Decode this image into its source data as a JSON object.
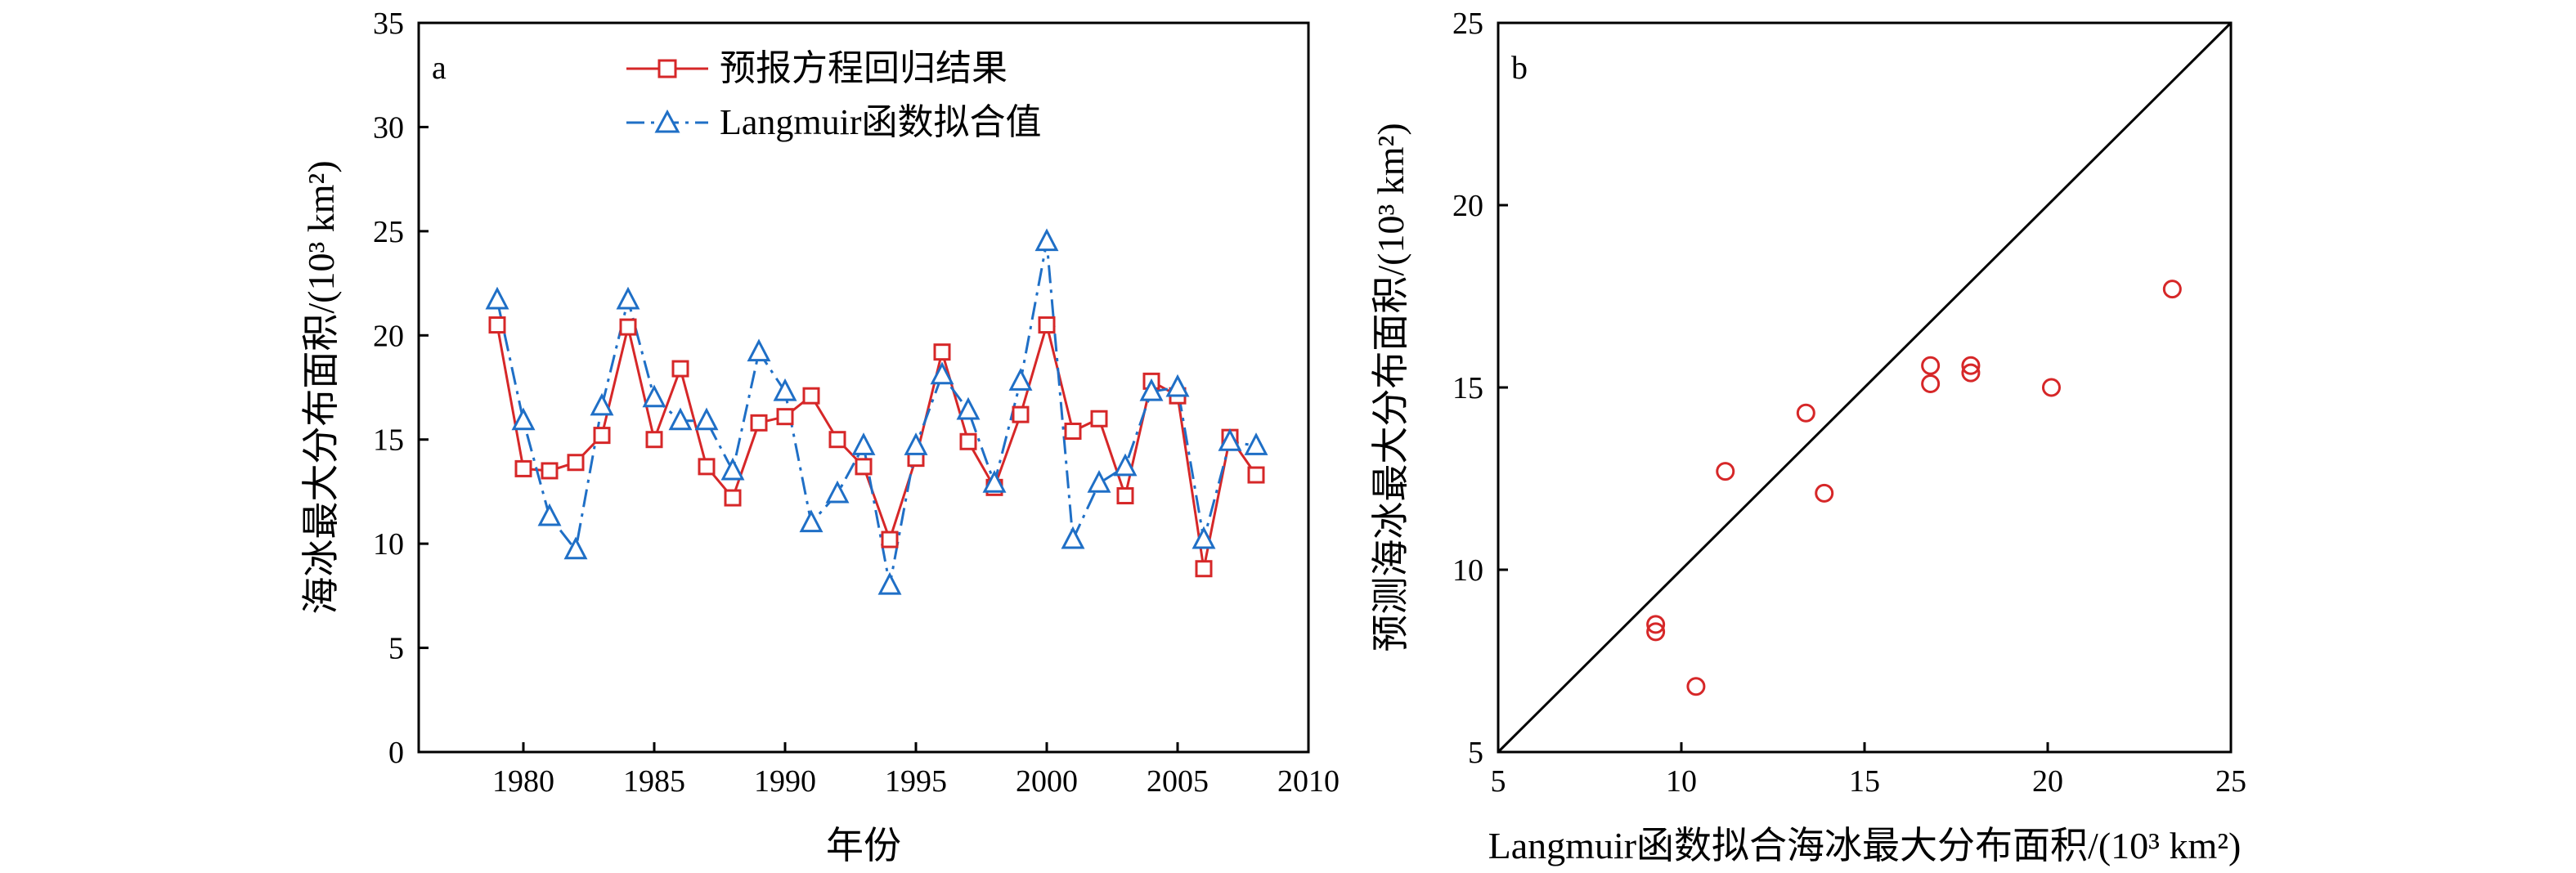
{
  "chart_data": [
    {
      "type": "line",
      "panel_label": "a",
      "xlabel": "年份",
      "ylabel": "海冰最大分布面积/(10³ km²)",
      "xlim": [
        1976,
        2010
      ],
      "ylim": [
        0,
        35
      ],
      "xticks": [
        1980,
        1985,
        1990,
        1995,
        2000,
        2005,
        2010
      ],
      "yticks": [
        0,
        5,
        10,
        15,
        20,
        25,
        30,
        35
      ],
      "legend_position": "top-center",
      "x": [
        1979,
        1980,
        1981,
        1982,
        1983,
        1984,
        1985,
        1986,
        1987,
        1988,
        1989,
        1990,
        1991,
        1992,
        1993,
        1994,
        1995,
        1996,
        1997,
        1998,
        1999,
        2000,
        2001,
        2002,
        2003,
        2004,
        2005,
        2006,
        2007,
        2008
      ],
      "series": [
        {
          "name": "预报方程回归结果",
          "color": "#d62728",
          "marker": "square",
          "line": "solid",
          "values": [
            20.5,
            13.6,
            13.5,
            13.9,
            15.2,
            20.4,
            15.0,
            18.4,
            13.7,
            12.2,
            15.8,
            16.1,
            17.1,
            15.0,
            13.7,
            10.2,
            14.1,
            19.2,
            14.9,
            12.7,
            16.2,
            20.5,
            15.4,
            16.0,
            12.3,
            17.8,
            17.1,
            8.8,
            15.1,
            13.3
          ]
        },
        {
          "name": "Langmuir函数拟合值",
          "color": "#1f6fc6",
          "marker": "triangle",
          "line": "dashdot",
          "values": [
            21.7,
            15.9,
            11.3,
            9.7,
            16.6,
            21.7,
            17.0,
            15.9,
            15.9,
            13.5,
            19.2,
            17.3,
            11.0,
            12.4,
            14.7,
            8.0,
            14.7,
            18.1,
            16.4,
            12.9,
            17.8,
            24.5,
            10.2,
            12.9,
            13.7,
            17.3,
            17.5,
            10.2,
            14.9,
            14.7
          ]
        }
      ]
    },
    {
      "type": "scatter",
      "panel_label": "b",
      "xlabel": "Langmuir函数拟合海冰最大分布面积/(10³ km²)",
      "ylabel": "预测海冰最大分布面积/(10³ km²)",
      "xlim": [
        5,
        25
      ],
      "ylim": [
        5,
        25
      ],
      "xticks": [
        5,
        10,
        15,
        20,
        25
      ],
      "yticks": [
        5,
        10,
        15,
        20,
        25
      ],
      "reference_line": "y = x",
      "marker_color": "#d62728",
      "points": [
        [
          9.3,
          8.5
        ],
        [
          9.3,
          8.3
        ],
        [
          10.4,
          6.8
        ],
        [
          11.2,
          12.7
        ],
        [
          13.4,
          14.3
        ],
        [
          13.9,
          12.1
        ],
        [
          16.8,
          15.6
        ],
        [
          16.8,
          15.1
        ],
        [
          17.9,
          15.6
        ],
        [
          17.9,
          15.4
        ],
        [
          20.1,
          15.0
        ],
        [
          23.4,
          17.7
        ]
      ]
    }
  ]
}
